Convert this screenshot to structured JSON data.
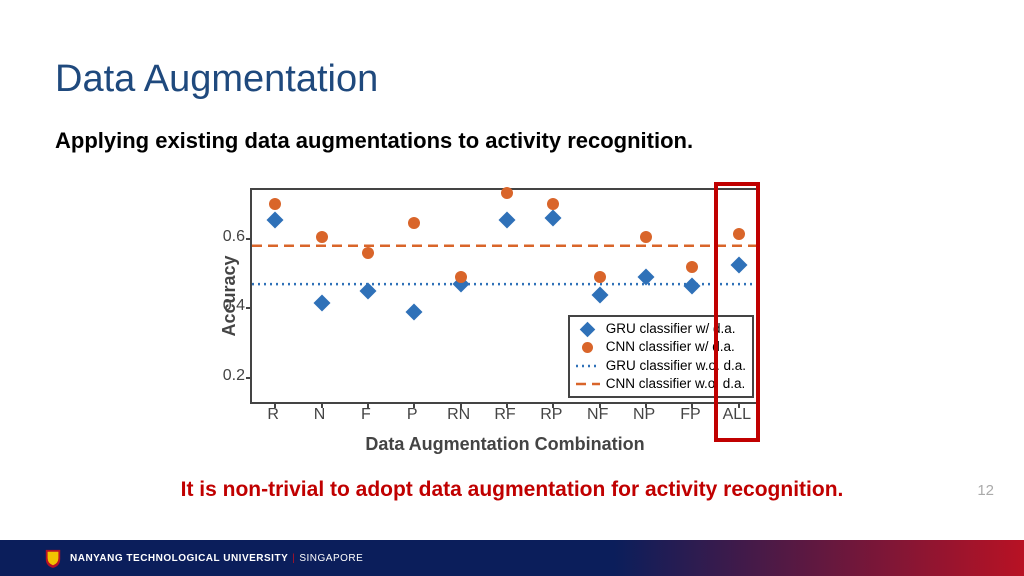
{
  "title": {
    "text": "Data Augmentation",
    "color": "#1f497d"
  },
  "subtitle": "Applying existing data augmentations to activity recognition.",
  "callout": {
    "text": "It is non-trivial to adopt data augmentation for activity recognition.",
    "color": "#c00000"
  },
  "page_number": "12",
  "footer": {
    "org": "NANYANG TECHNOLOGICAL UNIVERSITY",
    "loc": "SINGAPORE"
  },
  "chart": {
    "type": "scatter",
    "ylabel": "Accuracy",
    "xlabel": "Data Augmentation Combination",
    "ylim": [
      0.12,
      0.74
    ],
    "yticks": [
      0.2,
      0.4,
      0.6
    ],
    "categories": [
      "R",
      "N",
      "F",
      "P",
      "RN",
      "RF",
      "RP",
      "NF",
      "NP",
      "FP",
      "ALL"
    ],
    "colors": {
      "gru": "#2f71b8",
      "cnn": "#d9652a",
      "axis": "#444444",
      "bg": "#ffffff"
    },
    "ref_lines": {
      "gru_wo": {
        "y": 0.47,
        "color": "#2f71b8",
        "dash": "2,4",
        "width": 2.5
      },
      "cnn_wo": {
        "y": 0.58,
        "color": "#d9652a",
        "dash": "10,6",
        "width": 2.5
      }
    },
    "series": {
      "gru": [
        0.655,
        0.415,
        0.45,
        0.39,
        0.47,
        0.655,
        0.66,
        0.44,
        0.49,
        0.465,
        0.525
      ],
      "cnn": [
        0.7,
        0.605,
        0.56,
        0.645,
        0.49,
        0.73,
        0.7,
        0.49,
        0.605,
        0.52,
        0.615
      ]
    },
    "legend": [
      {
        "label": "GRU classifier w/ d.a.",
        "type": "diamond",
        "color": "#2f71b8"
      },
      {
        "label": "CNN classifier w/ d.a.",
        "type": "circle",
        "color": "#d9652a"
      },
      {
        "label": "GRU classifier w.o. d.a.",
        "type": "line",
        "color": "#2f71b8",
        "dash": "2,4"
      },
      {
        "label": "CNN classifier w.o. d.a.",
        "type": "line",
        "color": "#d9652a",
        "dash": "10,6"
      }
    ],
    "highlight_category": "ALL"
  }
}
